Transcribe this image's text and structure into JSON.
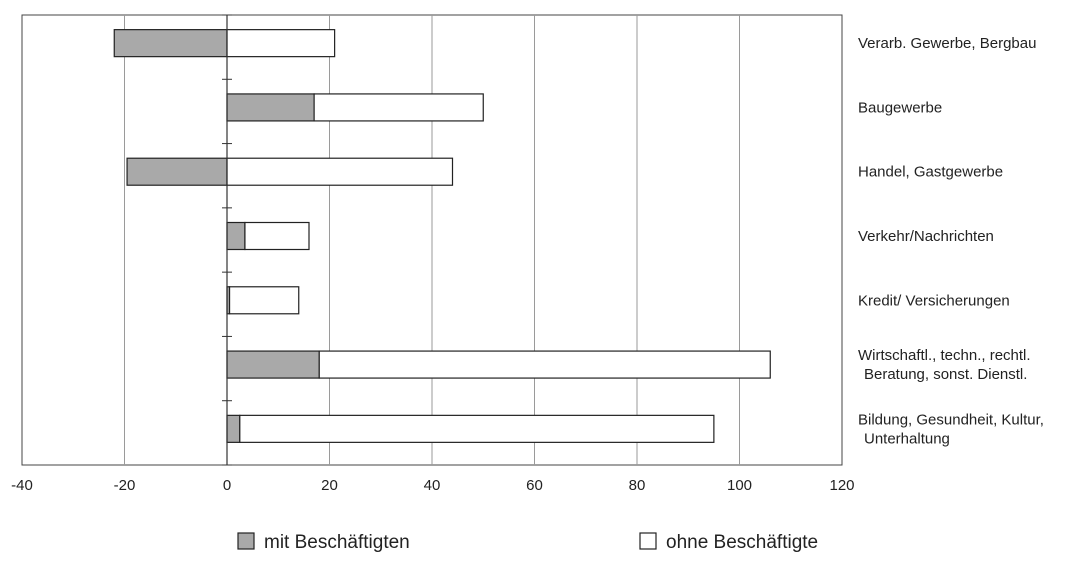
{
  "chart_data": {
    "type": "bar",
    "orientation": "horizontal",
    "stacked": true,
    "categories": [
      "Verarb. Gewerbe, Bergbau",
      "Baugewerbe",
      "Handel, Gastgewerbe",
      "Verkehr/Nachrichten",
      "Kredit/ Versicherungen",
      "Wirtschaftl., techn., rechtl. Beratung, sonst. Dienstl.",
      "Bildung, Gesundheit, Kultur, Unterhaltung"
    ],
    "category_lines": [
      [
        "Verarb. Gewerbe, Bergbau"
      ],
      [
        "Baugewerbe"
      ],
      [
        "Handel, Gastgewerbe"
      ],
      [
        "Verkehr/Nachrichten"
      ],
      [
        "Kredit/ Versicherungen"
      ],
      [
        "Wirtschaftl., techn., rechtl.",
        "Beratung, sonst. Dienstl."
      ],
      [
        "Bildung, Gesundheit, Kultur,",
        "Unterhaltung"
      ]
    ],
    "series": [
      {
        "name": "mit Beschäftigten",
        "color": "#a9a9a9",
        "values": [
          -22,
          17,
          -19.5,
          3.5,
          0.5,
          18,
          2.5
        ]
      },
      {
        "name": "ohne Beschäftigte",
        "color": "#ffffff",
        "values": [
          21,
          33,
          44,
          12.5,
          13.5,
          88,
          92.5
        ]
      }
    ],
    "segment_starts": [
      [
        0,
        0,
        0,
        0,
        0,
        0,
        0
      ],
      [
        0,
        17,
        0,
        3.5,
        0.5,
        18,
        2.5
      ]
    ],
    "xlim": [
      -40,
      120
    ],
    "xticks": [
      -40,
      -20,
      0,
      20,
      40,
      60,
      80,
      100,
      120
    ],
    "title": "",
    "xlabel": "",
    "ylabel": "",
    "grid": "vertical",
    "legend_position": "bottom"
  }
}
